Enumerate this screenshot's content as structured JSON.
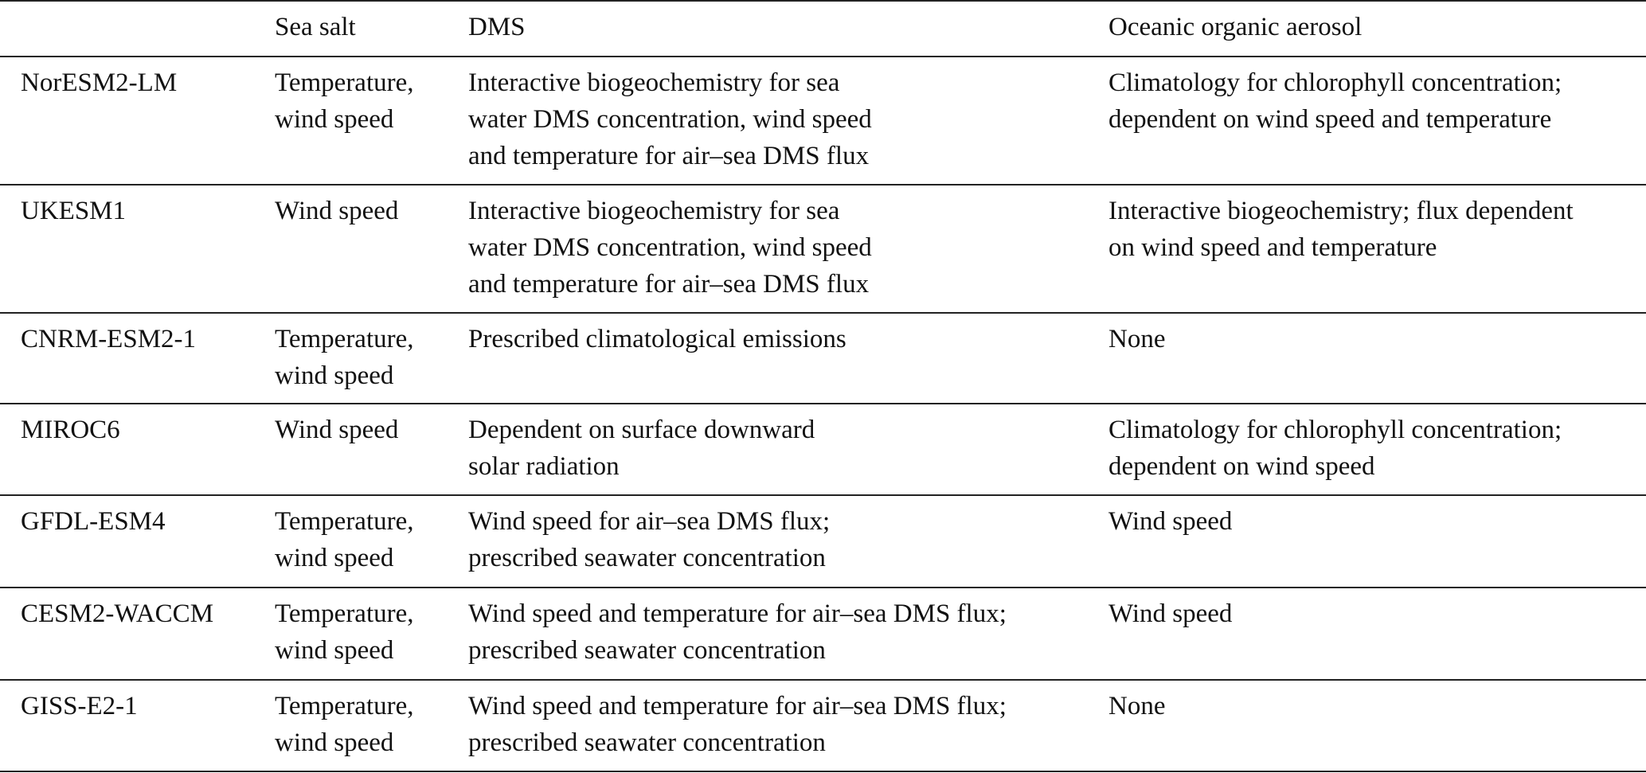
{
  "table": {
    "header": [
      "Sea salt",
      "DMS",
      "Oceanic organic aerosol"
    ],
    "rows": [
      [
        "NorESM2-LM",
        [
          "Temperature,",
          "wind speed"
        ],
        [
          "Interactive biogeochemistry for sea",
          "water DMS concentration, wind speed",
          "and temperature for air–sea DMS flux"
        ],
        [
          "Climatology for chlorophyll concentration;",
          "dependent on wind speed and temperature"
        ]
      ],
      [
        "UKESM1",
        [
          "Wind speed"
        ],
        [
          "Interactive biogeochemistry for sea",
          "water DMS concentration, wind speed",
          "and temperature for air–sea DMS flux"
        ],
        [
          "Interactive biogeochemistry; flux dependent",
          "on wind speed and temperature"
        ]
      ],
      [
        "CNRM-ESM2-1",
        [
          "Temperature,",
          "wind speed"
        ],
        [
          "Prescribed climatological emissions"
        ],
        [
          "None"
        ]
      ],
      [
        "MIROC6",
        [
          "Wind speed"
        ],
        [
          "Dependent on surface downward",
          "solar radiation"
        ],
        [
          "Climatology for chlorophyll concentration;",
          "dependent on wind speed"
        ]
      ],
      [
        "GFDL-ESM4",
        [
          "Temperature,",
          "wind speed"
        ],
        [
          "Wind speed for air–sea DMS flux;",
          "prescribed seawater concentration"
        ],
        [
          "Wind speed"
        ]
      ],
      [
        "CESM2-WACCM",
        [
          "Temperature,",
          "wind speed"
        ],
        [
          "Wind speed and temperature for air–sea DMS flux;",
          "prescribed seawater concentration"
        ],
        [
          "Wind speed"
        ]
      ],
      [
        "GISS-E2-1",
        [
          "Temperature,",
          "wind speed"
        ],
        [
          "Wind speed and temperature for air–sea DMS flux;",
          "prescribed seawater concentration"
        ],
        [
          "None"
        ]
      ]
    ]
  }
}
